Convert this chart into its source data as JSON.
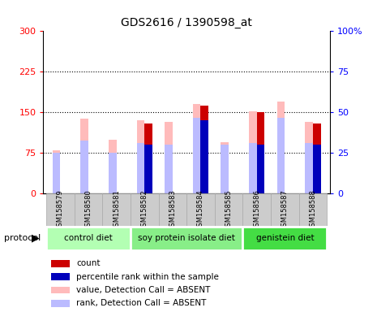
{
  "title": "GDS2616 / 1390598_at",
  "samples": [
    "GSM158579",
    "GSM158580",
    "GSM158581",
    "GSM158582",
    "GSM158583",
    "GSM158584",
    "GSM158585",
    "GSM158586",
    "GSM158587",
    "GSM158588"
  ],
  "groups": [
    {
      "label": "control diet",
      "color": "#b3ffb3",
      "indices": [
        0,
        1,
        2
      ]
    },
    {
      "label": "soy protein isolate diet",
      "color": "#88ee88",
      "indices": [
        3,
        4,
        5,
        6
      ]
    },
    {
      "label": "genistein diet",
      "color": "#44dd44",
      "indices": [
        7,
        8,
        9
      ]
    }
  ],
  "value_absent": [
    80,
    138,
    100,
    135,
    132,
    165,
    95,
    152,
    170,
    132
  ],
  "rank_absent": [
    75,
    98,
    75,
    93,
    90,
    140,
    90,
    93,
    140,
    93
  ],
  "count_red": [
    0,
    0,
    0,
    130,
    0,
    162,
    0,
    150,
    0,
    130
  ],
  "percentile_blue": [
    0,
    0,
    0,
    90,
    0,
    135,
    0,
    90,
    0,
    90
  ],
  "left_yticks": [
    0,
    75,
    150,
    225,
    300
  ],
  "right_yticks_vals": [
    0,
    75,
    150,
    225,
    300
  ],
  "right_yticks_labels": [
    "0",
    "25",
    "50",
    "75",
    "100%"
  ],
  "ylim": [
    0,
    300
  ],
  "bar_width": 0.28,
  "pink_color": "#ffbbbb",
  "lightblue_color": "#bbbbff",
  "red_color": "#cc0000",
  "blue_color": "#0000bb",
  "bg_color": "#dddddd",
  "plot_bg": "#ffffff",
  "grid_color": "#000000",
  "legend_items": [
    {
      "color": "#cc0000",
      "label": "count"
    },
    {
      "color": "#0000bb",
      "label": "percentile rank within the sample"
    },
    {
      "color": "#ffbbbb",
      "label": "value, Detection Call = ABSENT"
    },
    {
      "color": "#bbbbff",
      "label": "rank, Detection Call = ABSENT"
    }
  ]
}
